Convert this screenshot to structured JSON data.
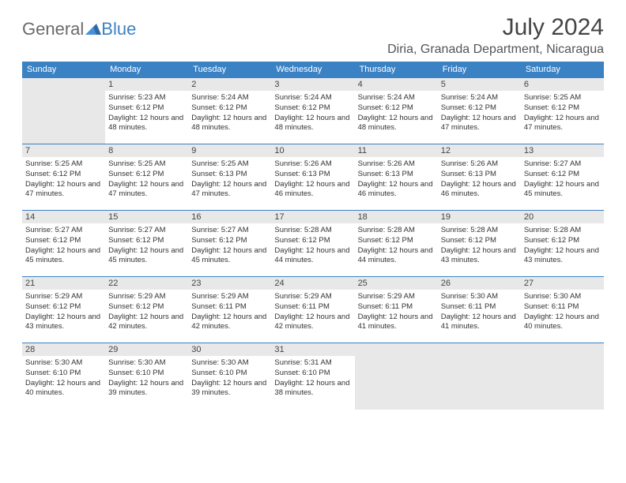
{
  "logo": {
    "text_gray": "General",
    "text_blue": "Blue"
  },
  "title": "July 2024",
  "location": "Diria, Granada Department, Nicaragua",
  "colors": {
    "header_bg": "#3b82c4",
    "header_fg": "#ffffff",
    "daynum_bg": "#e8e8e8",
    "border": "#3b82c4"
  },
  "weekdays": [
    "Sunday",
    "Monday",
    "Tuesday",
    "Wednesday",
    "Thursday",
    "Friday",
    "Saturday"
  ],
  "weeks": [
    [
      {
        "blank": true
      },
      {
        "n": "1",
        "sr": "5:23 AM",
        "ss": "6:12 PM",
        "dl": "12 hours and 48 minutes."
      },
      {
        "n": "2",
        "sr": "5:24 AM",
        "ss": "6:12 PM",
        "dl": "12 hours and 48 minutes."
      },
      {
        "n": "3",
        "sr": "5:24 AM",
        "ss": "6:12 PM",
        "dl": "12 hours and 48 minutes."
      },
      {
        "n": "4",
        "sr": "5:24 AM",
        "ss": "6:12 PM",
        "dl": "12 hours and 48 minutes."
      },
      {
        "n": "5",
        "sr": "5:24 AM",
        "ss": "6:12 PM",
        "dl": "12 hours and 47 minutes."
      },
      {
        "n": "6",
        "sr": "5:25 AM",
        "ss": "6:12 PM",
        "dl": "12 hours and 47 minutes."
      }
    ],
    [
      {
        "n": "7",
        "sr": "5:25 AM",
        "ss": "6:12 PM",
        "dl": "12 hours and 47 minutes."
      },
      {
        "n": "8",
        "sr": "5:25 AM",
        "ss": "6:12 PM",
        "dl": "12 hours and 47 minutes."
      },
      {
        "n": "9",
        "sr": "5:25 AM",
        "ss": "6:13 PM",
        "dl": "12 hours and 47 minutes."
      },
      {
        "n": "10",
        "sr": "5:26 AM",
        "ss": "6:13 PM",
        "dl": "12 hours and 46 minutes."
      },
      {
        "n": "11",
        "sr": "5:26 AM",
        "ss": "6:13 PM",
        "dl": "12 hours and 46 minutes."
      },
      {
        "n": "12",
        "sr": "5:26 AM",
        "ss": "6:13 PM",
        "dl": "12 hours and 46 minutes."
      },
      {
        "n": "13",
        "sr": "5:27 AM",
        "ss": "6:12 PM",
        "dl": "12 hours and 45 minutes."
      }
    ],
    [
      {
        "n": "14",
        "sr": "5:27 AM",
        "ss": "6:12 PM",
        "dl": "12 hours and 45 minutes."
      },
      {
        "n": "15",
        "sr": "5:27 AM",
        "ss": "6:12 PM",
        "dl": "12 hours and 45 minutes."
      },
      {
        "n": "16",
        "sr": "5:27 AM",
        "ss": "6:12 PM",
        "dl": "12 hours and 45 minutes."
      },
      {
        "n": "17",
        "sr": "5:28 AM",
        "ss": "6:12 PM",
        "dl": "12 hours and 44 minutes."
      },
      {
        "n": "18",
        "sr": "5:28 AM",
        "ss": "6:12 PM",
        "dl": "12 hours and 44 minutes."
      },
      {
        "n": "19",
        "sr": "5:28 AM",
        "ss": "6:12 PM",
        "dl": "12 hours and 43 minutes."
      },
      {
        "n": "20",
        "sr": "5:28 AM",
        "ss": "6:12 PM",
        "dl": "12 hours and 43 minutes."
      }
    ],
    [
      {
        "n": "21",
        "sr": "5:29 AM",
        "ss": "6:12 PM",
        "dl": "12 hours and 43 minutes."
      },
      {
        "n": "22",
        "sr": "5:29 AM",
        "ss": "6:12 PM",
        "dl": "12 hours and 42 minutes."
      },
      {
        "n": "23",
        "sr": "5:29 AM",
        "ss": "6:11 PM",
        "dl": "12 hours and 42 minutes."
      },
      {
        "n": "24",
        "sr": "5:29 AM",
        "ss": "6:11 PM",
        "dl": "12 hours and 42 minutes."
      },
      {
        "n": "25",
        "sr": "5:29 AM",
        "ss": "6:11 PM",
        "dl": "12 hours and 41 minutes."
      },
      {
        "n": "26",
        "sr": "5:30 AM",
        "ss": "6:11 PM",
        "dl": "12 hours and 41 minutes."
      },
      {
        "n": "27",
        "sr": "5:30 AM",
        "ss": "6:11 PM",
        "dl": "12 hours and 40 minutes."
      }
    ],
    [
      {
        "n": "28",
        "sr": "5:30 AM",
        "ss": "6:10 PM",
        "dl": "12 hours and 40 minutes."
      },
      {
        "n": "29",
        "sr": "5:30 AM",
        "ss": "6:10 PM",
        "dl": "12 hours and 39 minutes."
      },
      {
        "n": "30",
        "sr": "5:30 AM",
        "ss": "6:10 PM",
        "dl": "12 hours and 39 minutes."
      },
      {
        "n": "31",
        "sr": "5:31 AM",
        "ss": "6:10 PM",
        "dl": "12 hours and 38 minutes."
      },
      {
        "blank": true
      },
      {
        "blank": true
      },
      {
        "blank": true
      }
    ]
  ],
  "labels": {
    "sunrise": "Sunrise: ",
    "sunset": "Sunset: ",
    "daylight": "Daylight: "
  }
}
